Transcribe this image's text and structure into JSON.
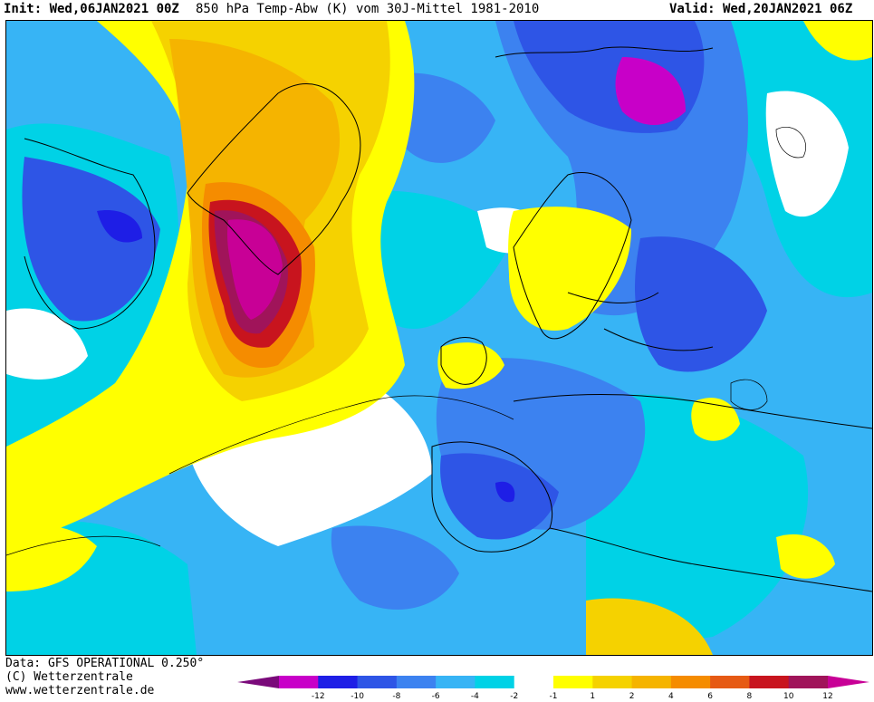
{
  "header": {
    "init": "Init: Wed,06JAN2021 00Z",
    "title": "850 hPa Temp-Abw (K) vom 30J-Mittel 1981-2010",
    "valid": "Valid: Wed,20JAN2021 06Z"
  },
  "footer": {
    "line1": "Data: GFS OPERATIONAL 0.250°",
    "line2": "(C) Wetterzentrale",
    "line3": "www.wetterzentrale.de"
  },
  "legend": {
    "labels": [
      "-12",
      "-10",
      "-8",
      "-6",
      "-4",
      "-2",
      "-1",
      "1",
      "2",
      "4",
      "6",
      "8",
      "10",
      "12"
    ],
    "colors": [
      "#7a0a7a",
      "#c800c8",
      "#1e1ee6",
      "#2e55e6",
      "#3c82f0",
      "#37b4f5",
      "#00d2e6",
      "#ffffff",
      "#ffff00",
      "#f5d200",
      "#f5b400",
      "#f58c00",
      "#e65a14",
      "#c8141e",
      "#a0145a",
      "#c80096"
    ]
  },
  "map": {
    "colors": {
      "ocean_base": "#37b4f5",
      "cold_strong": "#2e55e6",
      "cold_very": "#1e1ee6",
      "cold_extreme": "#c800c8",
      "neutral": "#ffffff",
      "warm_light": "#ffff00",
      "warm_mid": "#f5d200",
      "warm": "#f5b400",
      "warm_strong": "#f58c00",
      "hot": "#c8141e",
      "hotter": "#a0145a",
      "cyan": "#00d2e6"
    }
  }
}
